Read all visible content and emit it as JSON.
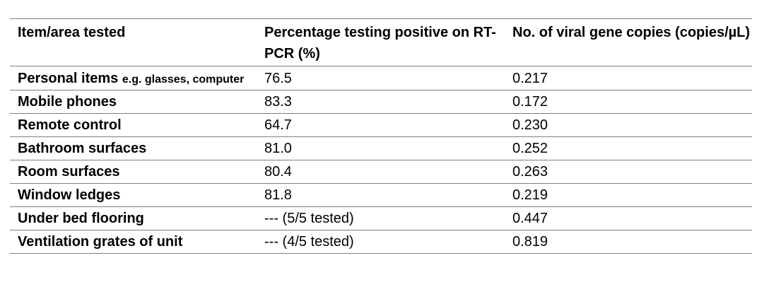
{
  "table": {
    "headers": [
      "Item/area tested",
      "Percentage testing positive on RT-PCR (%)",
      "No. of viral gene copies (copies/µL)"
    ],
    "rows": [
      {
        "item": "Personal items",
        "note": "e.g. glasses, computer",
        "percent": "76.5",
        "copies": "0.217"
      },
      {
        "item": "Mobile phones",
        "percent": "83.3",
        "copies": "0.172"
      },
      {
        "item": "Remote control",
        "percent": "64.7",
        "copies": "0.230"
      },
      {
        "item": "Bathroom surfaces",
        "percent": "81.0",
        "copies": "0.252"
      },
      {
        "item": "Room surfaces",
        "percent": "80.4",
        "copies": "0.263"
      },
      {
        "item": "Window ledges",
        "percent": "81.8",
        "copies": "0.219"
      },
      {
        "item": "Under bed flooring",
        "percent": "--- (5/5 tested)",
        "copies": "0.447"
      },
      {
        "item": "Ventilation grates of unit",
        "percent": "--- (4/5 tested)",
        "copies": "0.819"
      }
    ]
  }
}
